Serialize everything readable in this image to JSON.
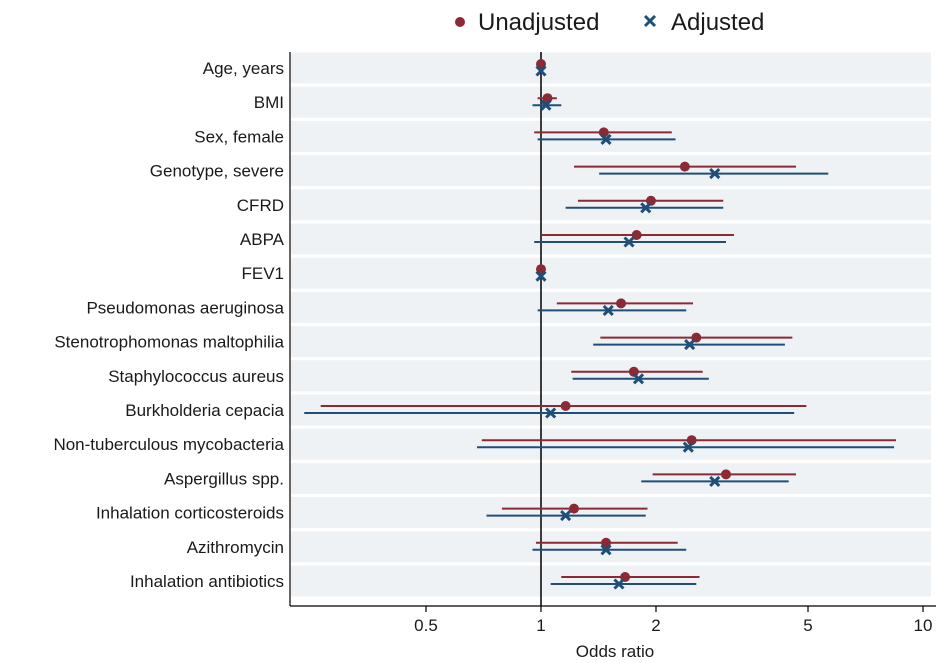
{
  "chart_data": {
    "type": "forest",
    "xlabel": "Odds ratio",
    "xscale": "log",
    "xlim": [
      0.3,
      10.5
    ],
    "xticks": [
      {
        "value": 0.5,
        "label": "0.5"
      },
      {
        "value": 1,
        "label": "1"
      },
      {
        "value": 2,
        "label": "2"
      },
      {
        "value": 5,
        "label": "5"
      },
      {
        "value": 10,
        "label": "10"
      }
    ],
    "reference_line": 1,
    "legend": {
      "position": "top-center"
    },
    "categories": [
      "Age, years",
      "BMI",
      "Sex, female",
      "Genotype, severe",
      "CFRD",
      "ABPA",
      "FEV1",
      "Pseudomonas aeruginosa",
      "Stenotrophomonas maltophilia",
      "Staphylococcus aureus",
      "Burkholderia cepacia",
      "Non-tuberculous mycobacteria",
      "Aspergillus spp.",
      "Inhalation corticosteroids",
      "Azithromycin",
      "Inhalation antibiotics"
    ],
    "series": [
      {
        "name": "Unadjusted",
        "color": "#8b2a35",
        "marker": "circle",
        "or": [
          1.0,
          1.04,
          1.46,
          2.38,
          1.94,
          1.78,
          1.0,
          1.62,
          2.55,
          1.75,
          1.16,
          2.48,
          3.05,
          1.22,
          1.48,
          1.66
        ],
        "low": [
          0.99,
          0.98,
          0.96,
          1.22,
          1.25,
          1.0,
          0.99,
          1.1,
          1.43,
          1.2,
          0.265,
          0.7,
          1.96,
          0.79,
          0.97,
          1.13
        ],
        "high": [
          1.01,
          1.1,
          2.2,
          4.65,
          3.0,
          3.2,
          1.01,
          2.5,
          4.55,
          2.65,
          4.95,
          8.5,
          4.65,
          1.9,
          2.28,
          2.6
        ]
      },
      {
        "name": "Adjusted",
        "color": "#1f4e79",
        "marker": "x",
        "or": [
          1.0,
          1.03,
          1.48,
          2.85,
          1.88,
          1.7,
          1.0,
          1.5,
          2.45,
          1.8,
          1.06,
          2.43,
          2.85,
          1.16,
          1.48,
          1.6
        ],
        "low": [
          0.99,
          0.95,
          0.98,
          1.42,
          1.16,
          0.96,
          0.99,
          0.98,
          1.37,
          1.21,
          0.24,
          0.68,
          1.83,
          0.72,
          0.95,
          1.06
        ],
        "high": [
          1.01,
          1.13,
          2.25,
          5.65,
          3.0,
          3.05,
          1.01,
          2.4,
          4.35,
          2.75,
          4.6,
          8.4,
          4.45,
          1.88,
          2.4,
          2.55
        ]
      }
    ]
  }
}
